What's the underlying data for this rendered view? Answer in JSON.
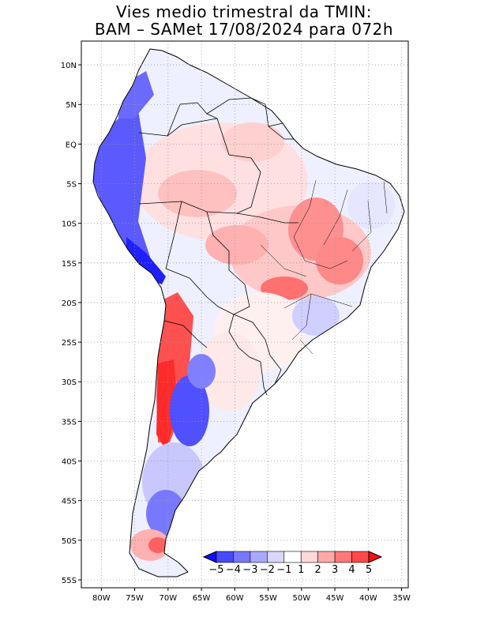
{
  "title": {
    "line1": "Vies medio trimestral da TMIN:",
    "line2": "BAM – SAMet 17/08/2024  para 072h"
  },
  "map": {
    "lat_ticks": [
      "10N",
      "5N",
      "EQ",
      "5S",
      "10S",
      "15S",
      "20S",
      "25S",
      "30S",
      "35S",
      "40S",
      "45S",
      "50S",
      "55S"
    ],
    "lat_values": [
      10,
      5,
      0,
      -5,
      -10,
      -15,
      -20,
      -25,
      -30,
      -35,
      -40,
      -45,
      -50,
      -55
    ],
    "lon_ticks": [
      "80W",
      "75W",
      "70W",
      "65W",
      "60W",
      "55W",
      "50W",
      "45W",
      "40W",
      "35W"
    ],
    "lon_values": [
      -80,
      -75,
      -70,
      -65,
      -60,
      -55,
      -50,
      -45,
      -40,
      -35
    ],
    "lon_range": [
      -83,
      -34
    ],
    "lat_range": [
      -56,
      13
    ],
    "grid": true
  },
  "colorbar": {
    "labels": [
      "−5",
      "−4",
      "−3",
      "−2",
      "−1",
      "1",
      "2",
      "3",
      "4",
      "5"
    ],
    "colors": [
      "#1010ff",
      "#4848ff",
      "#7878ff",
      "#a8a8ff",
      "#d8d8ff",
      "#ffffff",
      "#ffd8d8",
      "#ffa8a8",
      "#ff7878",
      "#ff4848",
      "#ff1010"
    ]
  }
}
